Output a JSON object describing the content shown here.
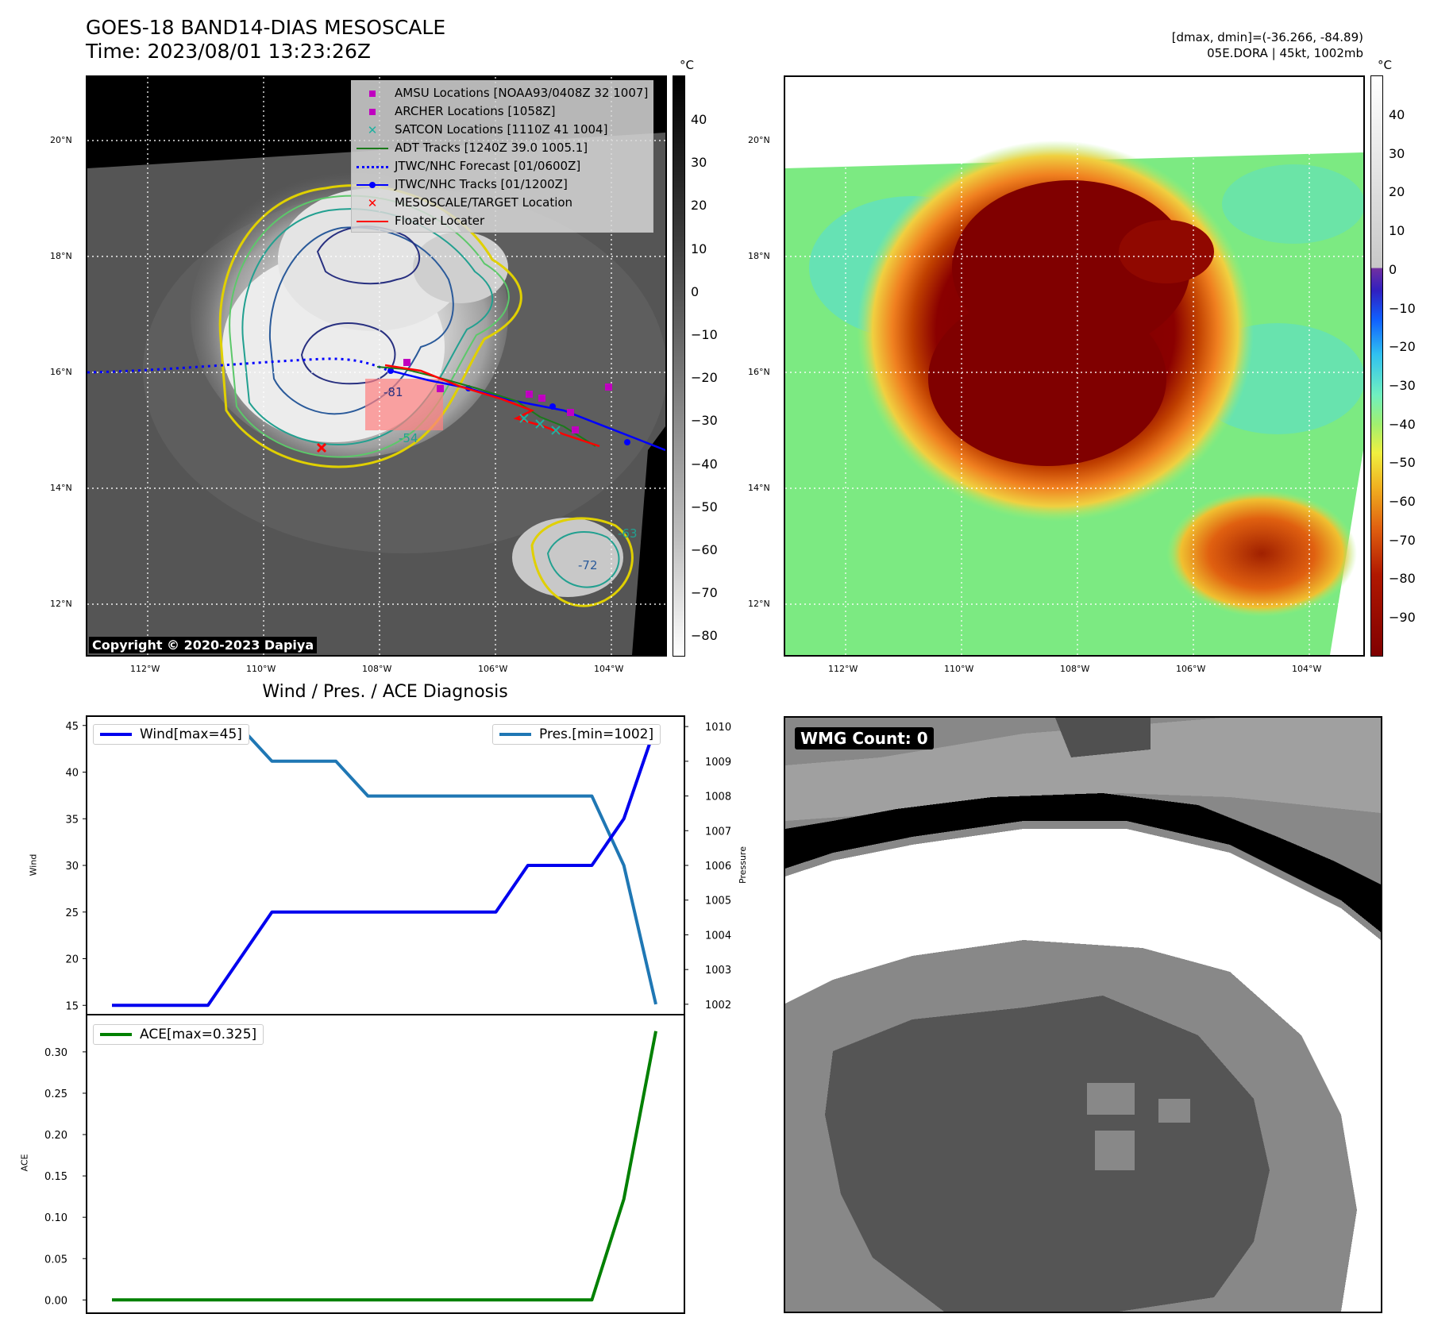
{
  "header": {
    "title_line1": "GOES-18 BAND14-DIAS MESOSCALE",
    "title_line2": "Time: 2023/08/01 13:23:26Z",
    "info_line1": "[dmax, dmin]=(-36.266, -84.89)",
    "info_line2": "05E.DORA | 45kt, 1002mb"
  },
  "map_axes": {
    "lon_labels": [
      "112°W",
      "110°W",
      "108°W",
      "106°W",
      "104°W"
    ],
    "lat_labels": [
      "20°N",
      "18°N",
      "16°N",
      "14°N",
      "12°N"
    ]
  },
  "ir_panel": {
    "colorbar_unit": "°C",
    "colorbar_ticks": [
      "40",
      "30",
      "20",
      "10",
      "0",
      "−10",
      "−20",
      "−30",
      "−40",
      "−50",
      "−60",
      "−70",
      "−80"
    ],
    "copyright": "Copyright © 2020-2023 Dapiya",
    "legend": [
      {
        "label": "AMSU Locations [NOAA93/0408Z 32 1007]",
        "symbol": "square",
        "color": "#c000c0"
      },
      {
        "label": "ARCHER Locations [1058Z]",
        "symbol": "square",
        "color": "#c000c0"
      },
      {
        "label": "SATCON Locations [1110Z 41 1004]",
        "symbol": "x",
        "color": "#20b0a0"
      },
      {
        "label": "ADT Tracks [1240Z 39.0 1005.1]",
        "symbol": "line",
        "color": "#1a7a1a"
      },
      {
        "label": "JTWC/NHC Forecast [01/0600Z]",
        "symbol": "dotted",
        "color": "#0000ff"
      },
      {
        "label": "JTWC/NHC Tracks [01/1200Z]",
        "symbol": "line-dot",
        "color": "#0000ff"
      },
      {
        "label": "MESOSCALE/TARGET Location",
        "symbol": "x",
        "color": "#ff0000"
      },
      {
        "label": "Floater Locater",
        "symbol": "line",
        "color": "#ff0000"
      }
    ],
    "contour_labels": [
      "-81",
      "-54",
      "-72",
      "-63"
    ]
  },
  "color_panel": {
    "colorbar_unit": "°C",
    "colorbar_ticks": [
      "40",
      "30",
      "20",
      "10",
      "0",
      "−10",
      "−20",
      "−30",
      "−40",
      "−50",
      "−60",
      "−70",
      "−80",
      "−90"
    ]
  },
  "diag_panel": {
    "title": "Wind / Pres. / ACE Diagnosis",
    "wind_legend": "Wind[max=45]",
    "pres_legend": "Pres.[min=1002]",
    "ace_legend": "ACE[max=0.325]",
    "wind_ylabel": "Wind",
    "pres_ylabel": "Pressure",
    "ace_ylabel": "ACE",
    "colors": {
      "wind": "#0000ee",
      "pres": "#1f77b4",
      "ace": "#008000"
    }
  },
  "wmg_panel": {
    "badge": "WMG Count: 0"
  },
  "chart_data": [
    {
      "type": "line",
      "title": "Wind / Pres. / ACE Diagnosis",
      "x": [
        0,
        1,
        2,
        3,
        4,
        5,
        6,
        7,
        8,
        9,
        10,
        11,
        12,
        13,
        14,
        15,
        16,
        17
      ],
      "series": [
        {
          "name": "Wind[max=45]",
          "axis": "left",
          "values": [
            15,
            15,
            15,
            15,
            20,
            25,
            25,
            25,
            25,
            25,
            25,
            25,
            25,
            30,
            30,
            30,
            35,
            45
          ]
        },
        {
          "name": "Pres.[min=1002]",
          "axis": "right",
          "values": [
            1010,
            1010,
            1010,
            1010,
            1010,
            1009,
            1009,
            1009,
            1008,
            1008,
            1008,
            1008,
            1008,
            1008,
            1008,
            1008,
            1006,
            1002
          ]
        }
      ],
      "ylabel": "Wind",
      "ylabel_right": "Pressure",
      "ylim": [
        14,
        46
      ],
      "ylim_right": [
        1001.7,
        1010.3
      ],
      "yticks": [
        15,
        20,
        25,
        30,
        35,
        40,
        45
      ],
      "yticks_right": [
        1002,
        1003,
        1004,
        1005,
        1006,
        1007,
        1008,
        1009,
        1010
      ]
    },
    {
      "type": "line",
      "x": [
        0,
        1,
        2,
        3,
        4,
        5,
        6,
        7,
        8,
        9,
        10,
        11,
        12,
        13,
        14,
        15,
        16,
        17
      ],
      "series": [
        {
          "name": "ACE[max=0.325]",
          "values": [
            0,
            0,
            0,
            0,
            0,
            0,
            0,
            0,
            0,
            0,
            0,
            0,
            0,
            0,
            0,
            0,
            0.122,
            0.325
          ]
        }
      ],
      "ylabel": "ACE",
      "ylim": [
        -0.016,
        0.345
      ],
      "yticks": [
        0.0,
        0.05,
        0.1,
        0.15,
        0.2,
        0.25,
        0.3
      ]
    }
  ]
}
